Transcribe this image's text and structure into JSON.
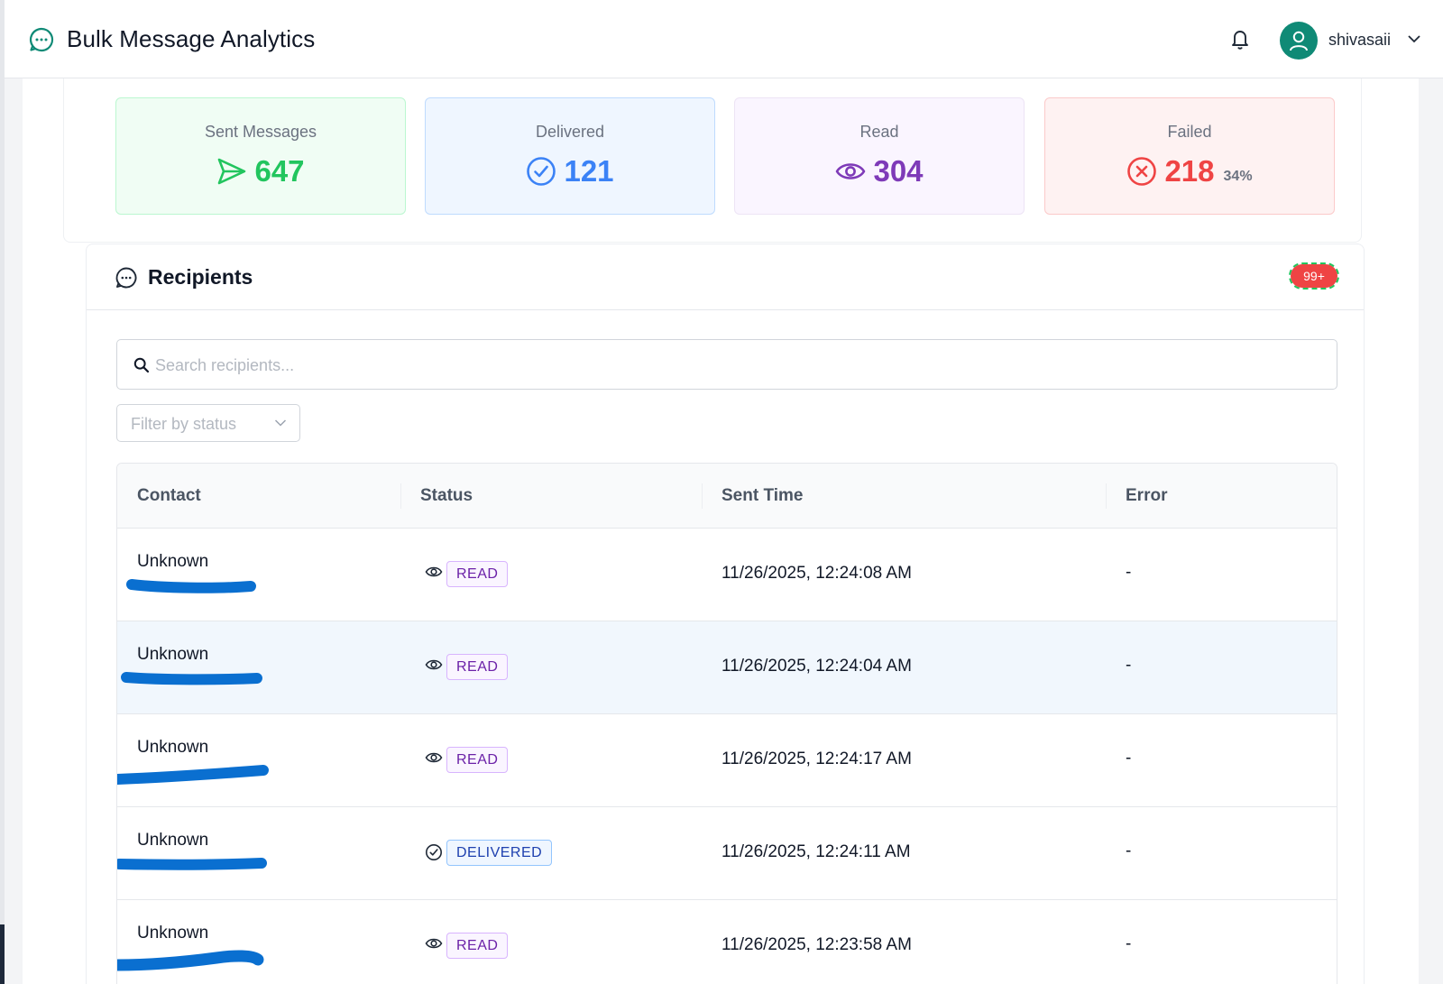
{
  "header": {
    "title": "Bulk Message Analytics",
    "username": "shivasaii",
    "icons": [
      "chat-icon",
      "bell-icon",
      "user-icon",
      "chevron-down-icon"
    ]
  },
  "stats": {
    "sent": {
      "label": "Sent Messages",
      "value": "647",
      "icon": "send-icon",
      "color": "#22c55e"
    },
    "delivered": {
      "label": "Delivered",
      "value": "121",
      "icon": "check-circle-icon",
      "color": "#3b82f6"
    },
    "read": {
      "label": "Read",
      "value": "304",
      "icon": "eye-icon",
      "color": "#7e3ab8"
    },
    "failed": {
      "label": "Failed",
      "value": "218",
      "percent": "34%",
      "icon": "x-circle-icon",
      "color": "#ef4444"
    }
  },
  "recipients": {
    "title": "Recipients",
    "badge": "99+",
    "search_placeholder": "Search recipients...",
    "filter_placeholder": "Filter by status",
    "columns": [
      "Contact",
      "Status",
      "Sent Time",
      "Error"
    ],
    "rows": [
      {
        "name": "Unknown",
        "status": "READ",
        "sent_time": "11/26/2025, 12:24:08 AM",
        "error": "-"
      },
      {
        "name": "Unknown",
        "status": "READ",
        "sent_time": "11/26/2025, 12:24:04 AM",
        "error": "-"
      },
      {
        "name": "Unknown",
        "status": "READ",
        "sent_time": "11/26/2025, 12:24:17 AM",
        "error": "-"
      },
      {
        "name": "Unknown",
        "status": "DELIVERED",
        "sent_time": "11/26/2025, 12:24:11 AM",
        "error": "-"
      },
      {
        "name": "Unknown",
        "status": "READ",
        "sent_time": "11/26/2025, 12:23:58 AM",
        "error": "-"
      }
    ]
  }
}
